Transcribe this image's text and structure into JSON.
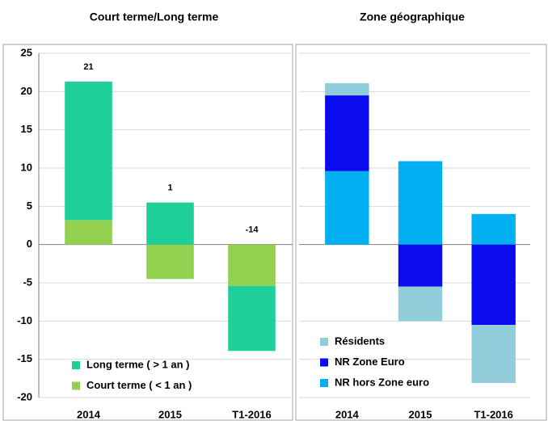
{
  "chart_data": [
    {
      "type": "bar",
      "title": "Court terme/Long terme",
      "categories": [
        "2014",
        "2015",
        "T1-2016"
      ],
      "series": [
        {
          "name": "Court terme ( < 1 an )",
          "color": "#92d050",
          "values": [
            3.2,
            -4.5,
            -5.4
          ]
        },
        {
          "name": "Long terme ( > 1 an )",
          "color": "#1ecf99",
          "values": [
            18.1,
            5.5,
            -8.5
          ]
        }
      ],
      "totals": [
        21,
        1,
        -14
      ],
      "ylim": [
        -20,
        25
      ],
      "yticks": [
        -20,
        -15,
        -10,
        -5,
        0,
        5,
        10,
        15,
        20,
        25
      ],
      "grid": true
    },
    {
      "type": "bar",
      "title": "Zone géographique",
      "categories": [
        "2014",
        "2015",
        "T1-2016"
      ],
      "series": [
        {
          "name": "NR hors Zone euro",
          "color": "#00b0f0",
          "values": [
            9.6,
            10.9,
            4.0
          ]
        },
        {
          "name": "NR Zone Euro",
          "color": "#0b0bef",
          "values": [
            9.9,
            -5.5,
            -10.5
          ]
        },
        {
          "name": "Résidents",
          "color": "#92cddc",
          "values": [
            1.6,
            -4.5,
            -7.6
          ]
        }
      ],
      "ylim": [
        -20,
        25
      ],
      "yticks": [
        -20,
        -15,
        -10,
        -5,
        0,
        5,
        10,
        15,
        20,
        25
      ],
      "grid": true
    }
  ]
}
